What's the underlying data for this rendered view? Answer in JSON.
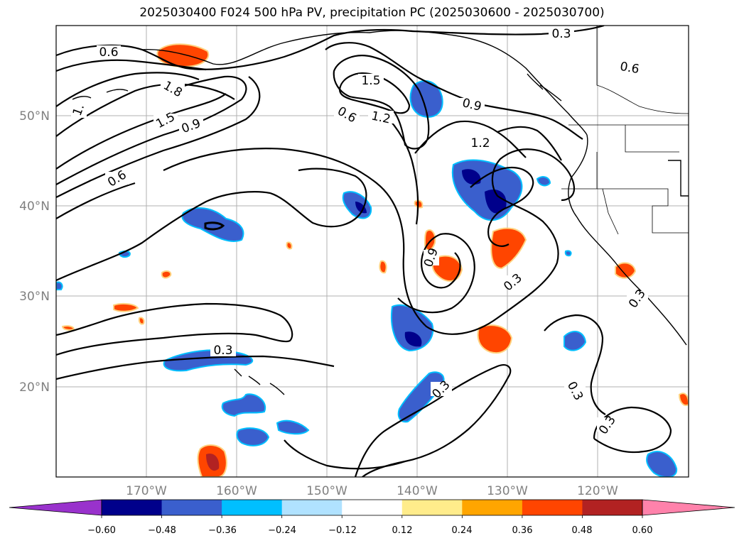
{
  "title": "2025030400 F024 500 hPa PV, precipitation PC (2025030600 - 2025030700)",
  "map": {
    "lat_labels": [
      "50°N",
      "40°N",
      "30°N",
      "20°N"
    ],
    "lon_labels": [
      "170°W",
      "160°W",
      "150°W",
      "140°W",
      "130°W",
      "120°W"
    ]
  },
  "contour_labels": [
    "0.6",
    "1.8",
    "1.5",
    "0.9",
    "0.6",
    "1.5",
    "1.2",
    "0.6",
    "0.9",
    "1.2",
    "0.9",
    "0.3",
    "0.3",
    "0.3",
    "0.3",
    "0.3",
    "0.3",
    "0.6",
    "0.3",
    "1."
  ],
  "colorbar": {
    "tick_labels": [
      "−0.60",
      "−0.48",
      "−0.36",
      "−0.24",
      "−0.12",
      "0.12",
      "0.24",
      "0.36",
      "0.48",
      "0.60"
    ],
    "colors": [
      "#9932cc",
      "#00008b",
      "#3a5fcd",
      "#00bfff",
      "#b0e2ff",
      "#ffffff",
      "#ffec8b",
      "#ffa500",
      "#ff4500",
      "#b22222",
      "#ff82ab"
    ]
  }
}
